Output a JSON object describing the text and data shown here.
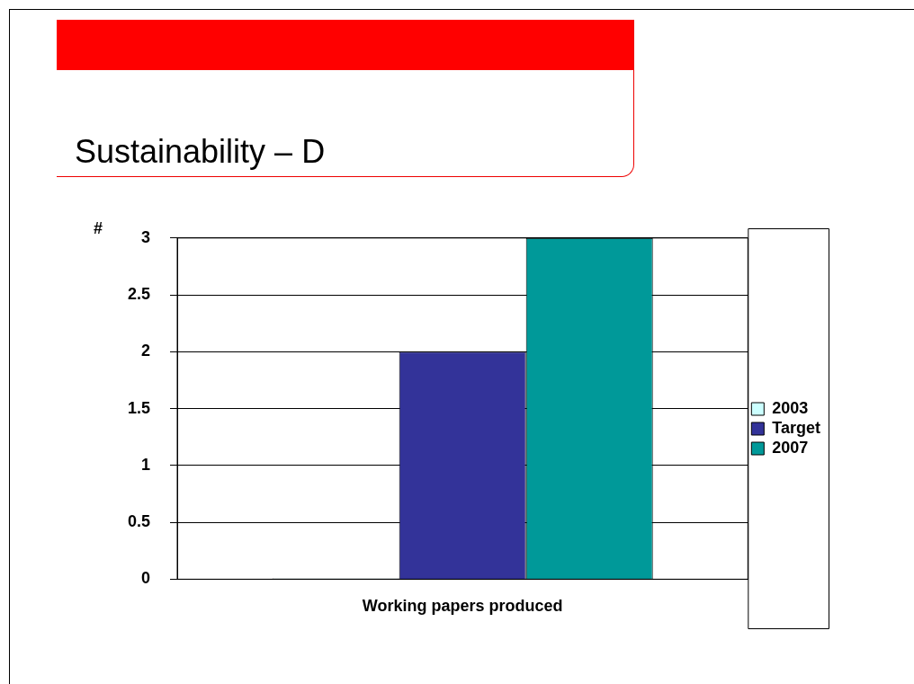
{
  "chart_data": {
    "type": "bar",
    "title": "Sustainability – D",
    "ylabel": "#",
    "categories": [
      "Working papers produced"
    ],
    "series": [
      {
        "name": "2003",
        "color": "#ccffff",
        "values": [
          0
        ]
      },
      {
        "name": "Target",
        "color": "#333399",
        "values": [
          2
        ]
      },
      {
        "name": "2007",
        "color": "#009999",
        "values": [
          3
        ]
      }
    ],
    "ylim": [
      0,
      3
    ],
    "yticks": [
      0,
      0.5,
      1,
      1.5,
      2,
      2.5,
      3
    ],
    "grid": "y",
    "legend": "right"
  }
}
